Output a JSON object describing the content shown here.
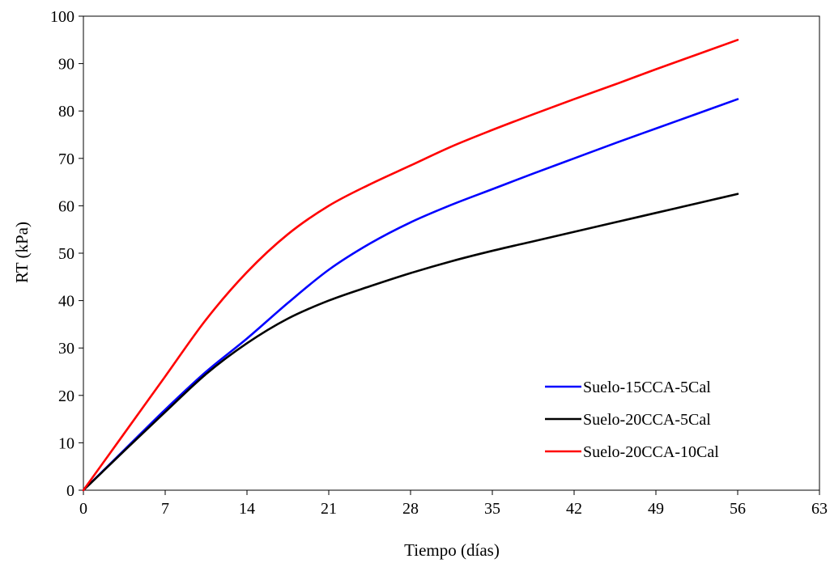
{
  "chart_data": {
    "type": "line",
    "xlabel": "Tiempo (días)",
    "ylabel": "RT (kPa)",
    "xlim": [
      0,
      63
    ],
    "ylim": [
      0,
      100
    ],
    "xticks": [
      0,
      7,
      14,
      21,
      28,
      35,
      42,
      49,
      56,
      63
    ],
    "yticks": [
      0,
      10,
      20,
      30,
      40,
      50,
      60,
      70,
      80,
      90,
      100
    ],
    "grid": false,
    "legend_position": "bottom-right",
    "series": [
      {
        "name": "Suelo-15CCA-5Cal",
        "color": "#0000ff",
        "x": [
          0,
          3.5,
          7,
          10.5,
          14,
          17.5,
          21,
          24.5,
          28,
          31.5,
          35,
          38.5,
          42,
          45.5,
          49,
          52.5,
          56
        ],
        "y": [
          0,
          8.5,
          17,
          25,
          32,
          39.5,
          46.5,
          52,
          56.5,
          60.2,
          63.5,
          66.8,
          70,
          73.2,
          76.3,
          79.4,
          82.5
        ]
      },
      {
        "name": "Suelo-20CCA-5Cal",
        "color": "#000000",
        "x": [
          0,
          3.5,
          7,
          10.5,
          14,
          17.5,
          21,
          24.5,
          28,
          31.5,
          35,
          38.5,
          42,
          45.5,
          49,
          52.5,
          56
        ],
        "y": [
          0,
          8.3,
          16.5,
          24.5,
          31,
          36.2,
          40,
          43,
          45.8,
          48.3,
          50.5,
          52.5,
          54.5,
          56.5,
          58.5,
          60.5,
          62.5
        ]
      },
      {
        "name": "Suelo-20CCA-10Cal",
        "color": "#ff0000",
        "x": [
          0,
          3.5,
          7,
          10.5,
          14,
          17.5,
          21,
          24.5,
          28,
          31.5,
          35,
          38.5,
          42,
          45.5,
          49,
          52.5,
          56
        ],
        "y": [
          0,
          12,
          24,
          36,
          46,
          54,
          60,
          64.5,
          68.5,
          72.5,
          76,
          79.3,
          82.5,
          85.6,
          88.8,
          91.9,
          95
        ]
      }
    ]
  }
}
